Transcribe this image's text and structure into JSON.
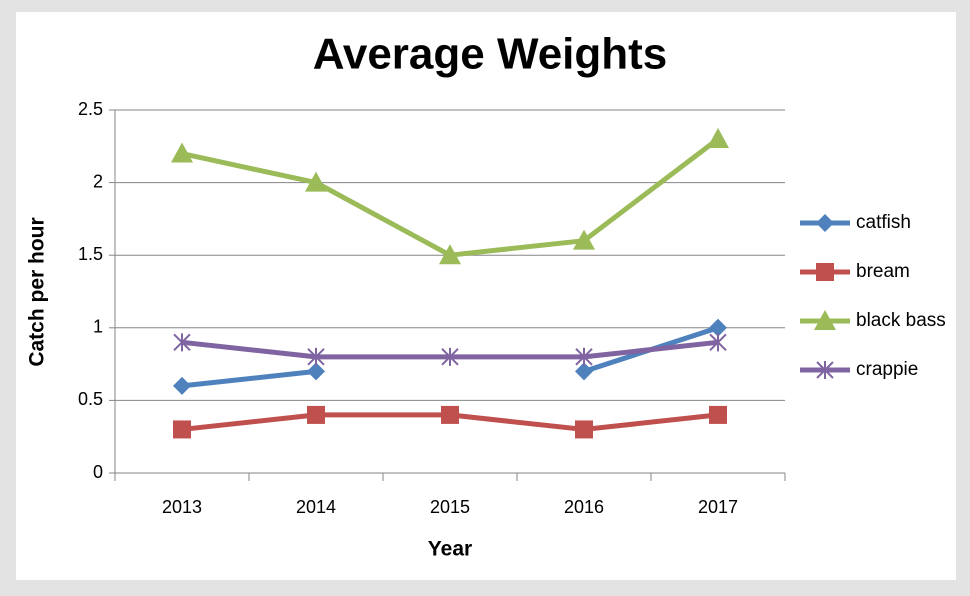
{
  "chart_data": {
    "type": "line",
    "title": "Average Weights",
    "x_label": "Year",
    "y_label": "Catch per hour",
    "categories": [
      "2013",
      "2014",
      "2015",
      "2016",
      "2017"
    ],
    "series": [
      {
        "name": "catfish",
        "color": "#4f81bd",
        "marker": "diamond",
        "values": [
          0.6,
          0.7,
          null,
          0.7,
          1.0
        ]
      },
      {
        "name": "bream",
        "color": "#c0504d",
        "marker": "square",
        "values": [
          0.3,
          0.4,
          0.4,
          0.3,
          0.4
        ]
      },
      {
        "name": "black bass",
        "color": "#9bbb59",
        "marker": "triangle",
        "values": [
          2.2,
          2.0,
          1.5,
          1.6,
          2.3
        ]
      },
      {
        "name": "crappie",
        "color": "#8064a2",
        "marker": "star",
        "values": [
          0.9,
          0.8,
          0.8,
          0.8,
          0.9
        ]
      }
    ],
    "ylim": [
      0,
      2.5
    ],
    "yticks": [
      0,
      0.5,
      1,
      1.5,
      2,
      2.5
    ],
    "grid": true,
    "legend": "right"
  }
}
